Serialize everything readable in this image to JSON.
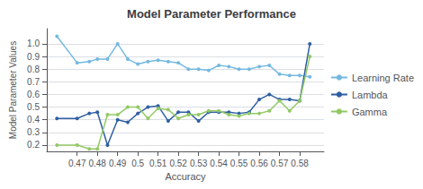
{
  "chart_data": {
    "type": "line",
    "title": "Model Parameter Performance",
    "xlabel": "Accuracy",
    "ylabel": "Model Parameter Values",
    "x": [
      0.46,
      0.47,
      0.476,
      0.48,
      0.485,
      0.49,
      0.495,
      0.5,
      0.505,
      0.51,
      0.515,
      0.52,
      0.525,
      0.53,
      0.535,
      0.54,
      0.545,
      0.55,
      0.555,
      0.56,
      0.565,
      0.57,
      0.575,
      0.58,
      0.585
    ],
    "series": [
      {
        "name": "Learning Rate",
        "color": "#74b9e0",
        "values": [
          1.06,
          0.85,
          0.86,
          0.88,
          0.88,
          1.0,
          0.88,
          0.84,
          0.86,
          0.87,
          0.86,
          0.85,
          0.8,
          0.8,
          0.79,
          0.83,
          0.82,
          0.8,
          0.8,
          0.82,
          0.83,
          0.76,
          0.75,
          0.75,
          0.74
        ]
      },
      {
        "name": "Lambda",
        "color": "#2e5fa3",
        "values": [
          0.41,
          0.41,
          0.45,
          0.46,
          0.2,
          0.4,
          0.38,
          0.45,
          0.5,
          0.51,
          0.39,
          0.46,
          0.46,
          0.39,
          0.46,
          0.46,
          0.46,
          0.45,
          0.46,
          0.56,
          0.6,
          0.56,
          0.56,
          0.55,
          1.0
        ]
      },
      {
        "name": "Gamma",
        "color": "#92c965",
        "values": [
          0.2,
          0.2,
          0.17,
          0.17,
          0.44,
          0.44,
          0.5,
          0.5,
          0.41,
          0.49,
          0.48,
          0.41,
          0.44,
          0.44,
          0.47,
          0.47,
          0.44,
          0.43,
          0.45,
          0.45,
          0.47,
          0.55,
          0.47,
          0.55,
          0.9
        ]
      }
    ],
    "xlim": [
      0.455,
      0.592
    ],
    "xticks": [
      0.47,
      0.48,
      0.49,
      0.5,
      0.51,
      0.52,
      0.53,
      0.54,
      0.55,
      0.56,
      0.57,
      0.58
    ],
    "ylim": [
      0.15,
      1.12
    ],
    "yticks": [
      0.2,
      0.3,
      0.4,
      0.5,
      0.6,
      0.7,
      0.8,
      0.9,
      {
        "value": 1,
        "label": "1.0"
      }
    ],
    "marker": "circle",
    "grid": true,
    "legend": "right"
  }
}
